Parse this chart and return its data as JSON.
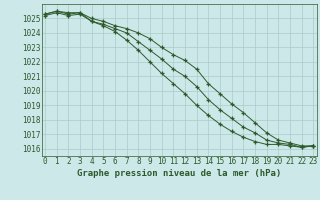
{
  "x": [
    0,
    1,
    2,
    3,
    4,
    5,
    6,
    7,
    8,
    9,
    10,
    11,
    12,
    13,
    14,
    15,
    16,
    17,
    18,
    19,
    20,
    21,
    22,
    23
  ],
  "line1": [
    1025.3,
    1025.5,
    1025.4,
    1025.4,
    1024.8,
    1024.6,
    1024.3,
    1024.0,
    1023.4,
    1022.8,
    1022.2,
    1021.5,
    1021.0,
    1020.3,
    1019.4,
    1018.7,
    1018.1,
    1017.5,
    1017.1,
    1016.6,
    1016.4,
    1016.3,
    1016.1,
    1016.2
  ],
  "line2": [
    1025.3,
    1025.5,
    1025.3,
    1025.4,
    1025.0,
    1024.8,
    1024.5,
    1024.3,
    1024.0,
    1023.6,
    1023.0,
    1022.5,
    1022.1,
    1021.5,
    1020.5,
    1019.8,
    1019.1,
    1018.5,
    1017.8,
    1017.1,
    1016.6,
    1016.4,
    1016.2,
    1016.2
  ],
  "line3": [
    1025.2,
    1025.4,
    1025.2,
    1025.3,
    1024.8,
    1024.5,
    1024.1,
    1023.5,
    1022.8,
    1022.0,
    1021.2,
    1020.5,
    1019.8,
    1019.0,
    1018.3,
    1017.7,
    1017.2,
    1016.8,
    1016.5,
    1016.3,
    1016.3,
    1016.2,
    1016.1,
    1016.2
  ],
  "ylim_low": 1015.5,
  "ylim_high": 1026.0,
  "yticks": [
    1016,
    1017,
    1018,
    1019,
    1020,
    1021,
    1022,
    1023,
    1024,
    1025
  ],
  "xticks": [
    0,
    1,
    2,
    3,
    4,
    5,
    6,
    7,
    8,
    9,
    10,
    11,
    12,
    13,
    14,
    15,
    16,
    17,
    18,
    19,
    20,
    21,
    22,
    23
  ],
  "xlabel": "Graphe pression niveau de la mer (hPa)",
  "line_color": "#2d5a2d",
  "bg_color": "#cce8e8",
  "grid_color": "#aacccc",
  "tick_label_fontsize": 5.5,
  "xlabel_fontsize": 6.5
}
